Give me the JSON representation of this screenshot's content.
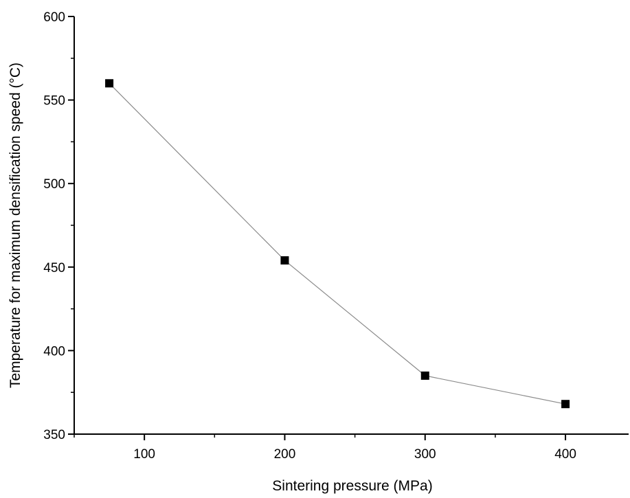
{
  "chart_data": {
    "type": "line",
    "title": "",
    "xlabel": "Sintering pressure (MPa)",
    "ylabel": "Temperature for maximum densification speed (°C)",
    "xlim": [
      50,
      445
    ],
    "ylim": [
      350,
      600
    ],
    "xticks": [
      100,
      200,
      300,
      400
    ],
    "xtick_labels": [
      "100",
      "200",
      "300",
      "400"
    ],
    "yticks": [
      350,
      400,
      450,
      500,
      550,
      600
    ],
    "ytick_labels": [
      "350",
      "400",
      "450",
      "500",
      "550",
      "600"
    ],
    "grid": false,
    "legend": "none",
    "series": [
      {
        "x": [
          75,
          200,
          300,
          400
        ],
        "y": [
          560,
          454,
          385,
          368
        ],
        "marker": "square",
        "marker_color": "#000000",
        "line_color": "#8a8a8a"
      }
    ]
  }
}
